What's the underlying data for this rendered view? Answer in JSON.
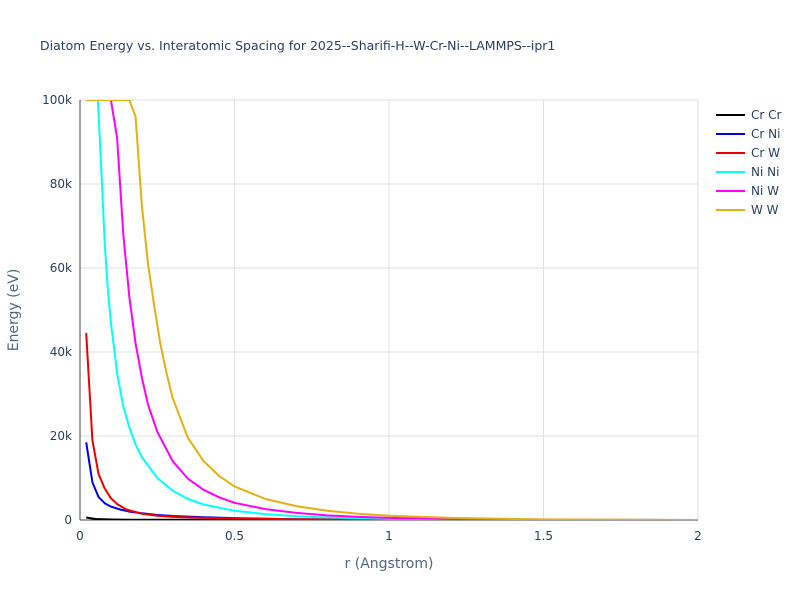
{
  "chart_data": {
    "type": "line",
    "title": "Diatom Energy vs. Interatomic Spacing for 2025--Sharifi-H--W-Cr-Ni--LAMMPS--ipr1",
    "xlabel": "r (Angstrom)",
    "ylabel": "Energy (eV)",
    "xlim": [
      0,
      2
    ],
    "ylim": [
      0,
      100000
    ],
    "xticks": [
      0,
      0.5,
      1,
      1.5,
      2
    ],
    "xtick_labels": [
      "0",
      "0.5",
      "1",
      "1.5",
      "2"
    ],
    "yticks": [
      0,
      20000,
      40000,
      60000,
      80000,
      100000
    ],
    "ytick_labels": [
      "0",
      "20k",
      "40k",
      "60k",
      "80k",
      "100k"
    ],
    "grid": true,
    "legend_position": "top-right",
    "series": [
      {
        "name": "Cr Cr",
        "color": "#000000",
        "x": [
          0.02,
          0.05,
          0.1,
          0.15,
          0.2,
          0.3,
          0.5,
          0.7,
          1.0,
          1.5,
          2.0
        ],
        "y": [
          600,
          250,
          120,
          80,
          60,
          40,
          20,
          10,
          5,
          2,
          0
        ]
      },
      {
        "name": "Cr Ni",
        "color": "#0000ee",
        "x": [
          0.02,
          0.04,
          0.06,
          0.08,
          0.1,
          0.13,
          0.16,
          0.2,
          0.25,
          0.3,
          0.4,
          0.5,
          0.7,
          1.0,
          1.5,
          2.0
        ],
        "y": [
          18500,
          9000,
          5500,
          4000,
          3200,
          2500,
          2000,
          1600,
          1200,
          950,
          650,
          450,
          200,
          60,
          10,
          0
        ]
      },
      {
        "name": "Cr W",
        "color": "#ee0000",
        "x": [
          0.02,
          0.04,
          0.06,
          0.08,
          0.1,
          0.12,
          0.15,
          0.2,
          0.25,
          0.3,
          0.4,
          0.5,
          0.7,
          1.0,
          1.5,
          2.0
        ],
        "y": [
          44500,
          19000,
          11000,
          7500,
          5200,
          3800,
          2500,
          1500,
          1000,
          750,
          500,
          350,
          180,
          60,
          10,
          0
        ]
      },
      {
        "name": "Ni Ni",
        "color": "#00ffff",
        "x": [
          0.02,
          0.058,
          0.07,
          0.08,
          0.09,
          0.1,
          0.12,
          0.14,
          0.16,
          0.18,
          0.2,
          0.25,
          0.3,
          0.35,
          0.4,
          0.5,
          0.6,
          0.7,
          0.8,
          1.0,
          1.2,
          1.5,
          2.0
        ],
        "y": [
          100000,
          100000,
          82000,
          66000,
          55000,
          47000,
          35000,
          27000,
          22000,
          18000,
          15000,
          10000,
          7000,
          5000,
          3700,
          2200,
          1400,
          900,
          600,
          300,
          150,
          60,
          0
        ]
      },
      {
        "name": "Ni W",
        "color": "#ff00ff",
        "x": [
          0.02,
          0.1,
          0.12,
          0.14,
          0.16,
          0.18,
          0.2,
          0.22,
          0.25,
          0.3,
          0.35,
          0.4,
          0.45,
          0.5,
          0.6,
          0.7,
          0.8,
          0.9,
          1.0,
          1.2,
          1.5,
          2.0
        ],
        "y": [
          100000,
          100000,
          91000,
          68000,
          53000,
          42000,
          34000,
          27500,
          21000,
          14000,
          9800,
          7200,
          5400,
          4100,
          2600,
          1700,
          1100,
          750,
          500,
          250,
          80,
          0
        ]
      },
      {
        "name": "W W",
        "color": "#e6b012",
        "x": [
          0.02,
          0.16,
          0.18,
          0.2,
          0.22,
          0.24,
          0.26,
          0.28,
          0.3,
          0.35,
          0.4,
          0.45,
          0.5,
          0.6,
          0.7,
          0.8,
          0.9,
          1.0,
          1.2,
          1.5,
          2.0
        ],
        "y": [
          100000,
          100000,
          96000,
          75000,
          61000,
          51000,
          42000,
          35000,
          29000,
          19500,
          14000,
          10500,
          8000,
          5000,
          3300,
          2200,
          1500,
          1000,
          500,
          150,
          0
        ]
      }
    ]
  }
}
